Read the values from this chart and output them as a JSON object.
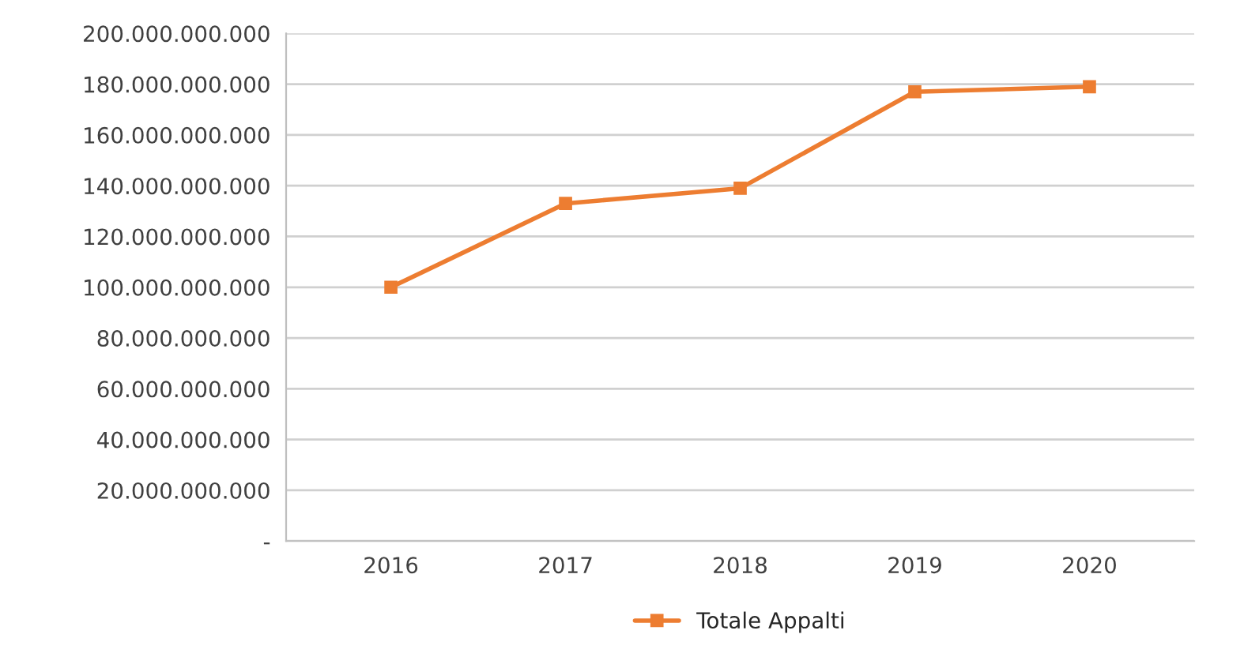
{
  "chart_data": {
    "type": "line",
    "categories": [
      "2016",
      "2017",
      "2018",
      "2019",
      "2020"
    ],
    "series": [
      {
        "name": "Totale Appalti",
        "color": "#ed7d31",
        "values": [
          100000000000,
          133000000000,
          139000000000,
          177000000000,
          179000000000
        ]
      }
    ],
    "ylim": [
      0,
      200000000000
    ],
    "yticks": [
      {
        "value": 0,
        "label": "-"
      },
      {
        "value": 20000000000,
        "label": "20.000.000.000"
      },
      {
        "value": 40000000000,
        "label": "40.000.000.000"
      },
      {
        "value": 60000000000,
        "label": "60.000.000.000"
      },
      {
        "value": 80000000000,
        "label": "80.000.000.000"
      },
      {
        "value": 100000000000,
        "label": "100.000.000.000"
      },
      {
        "value": 120000000000,
        "label": "120.000.000.000"
      },
      {
        "value": 140000000000,
        "label": "140.000.000.000"
      },
      {
        "value": 160000000000,
        "label": "160.000.000.000"
      },
      {
        "value": 180000000000,
        "label": "180.000.000.000"
      },
      {
        "value": 200000000000,
        "label": "200.000.000.000"
      }
    ],
    "grid": "y",
    "legend": "bottom",
    "marker": "square",
    "line_style": "solid"
  }
}
